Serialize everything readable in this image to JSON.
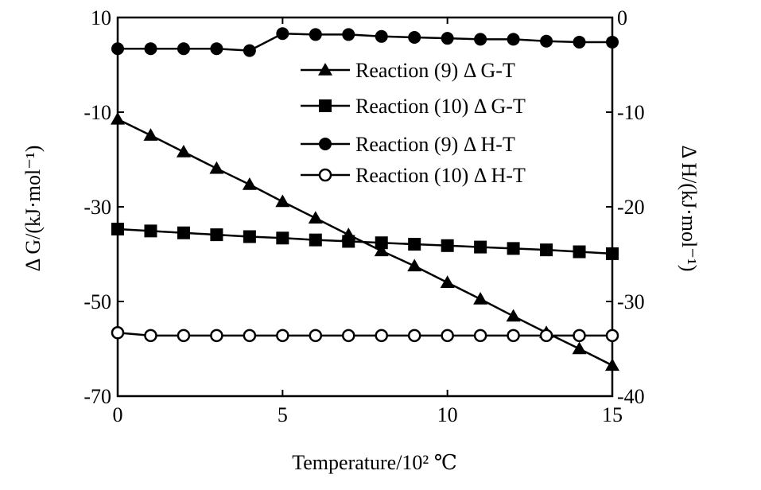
{
  "chart_data": {
    "type": "line",
    "title": "",
    "xlabel": "Temperature/10² ℃",
    "ylabel_left": "Δ G/(kJ·mol⁻¹)",
    "ylabel_right": "Δ H/(kJ·mol⁻¹)",
    "xlim": [
      0,
      15
    ],
    "ylim_left": [
      -70,
      10
    ],
    "ylim_right": [
      -40,
      0
    ],
    "x_ticks": [
      "0",
      "5",
      "10",
      "15"
    ],
    "y_left_ticks": [
      "10",
      "-10",
      "-30",
      "-50",
      "-70"
    ],
    "y_right_ticks": [
      "0",
      "-10",
      "-20",
      "-30",
      "-40"
    ],
    "grid": false,
    "legend_position": "top-right",
    "x": [
      0,
      1,
      2,
      3,
      4,
      5,
      6,
      7,
      8,
      9,
      10,
      11,
      12,
      13,
      14,
      15
    ],
    "series": [
      {
        "name": "Reaction (9)  Δ G-T",
        "axis": "left",
        "marker": "triangle",
        "values": [
          -11.5,
          -14.9,
          -18.4,
          -21.9,
          -25.3,
          -28.9,
          -32.4,
          -35.9,
          -39.3,
          -42.5,
          -46.0,
          -49.5,
          -53.1,
          -56.6,
          -60.0,
          -63.5
        ]
      },
      {
        "name": "Reaction (10)  Δ G-T",
        "axis": "left",
        "marker": "square",
        "values": [
          -34.7,
          -35.1,
          -35.5,
          -35.9,
          -36.3,
          -36.6,
          -37.0,
          -37.3,
          -37.6,
          -37.9,
          -38.2,
          -38.5,
          -38.8,
          -39.1,
          -39.5,
          -39.9
        ]
      },
      {
        "name": "Reaction (9)  Δ H-T",
        "axis": "right",
        "marker": "circle-filled",
        "values": [
          -3.3,
          -3.3,
          -3.3,
          -3.3,
          -3.5,
          -1.7,
          -1.8,
          -1.8,
          -2.0,
          -2.1,
          -2.2,
          -2.3,
          -2.3,
          -2.5,
          -2.6,
          -2.6
        ]
      },
      {
        "name": "Reaction (10)  Δ H-T",
        "axis": "right",
        "marker": "circle-open",
        "values": [
          -33.3,
          -33.6,
          -33.6,
          -33.6,
          -33.6,
          -33.6,
          -33.6,
          -33.6,
          -33.6,
          -33.6,
          -33.6,
          -33.6,
          -33.6,
          -33.6,
          -33.6,
          -33.6
        ]
      }
    ]
  }
}
